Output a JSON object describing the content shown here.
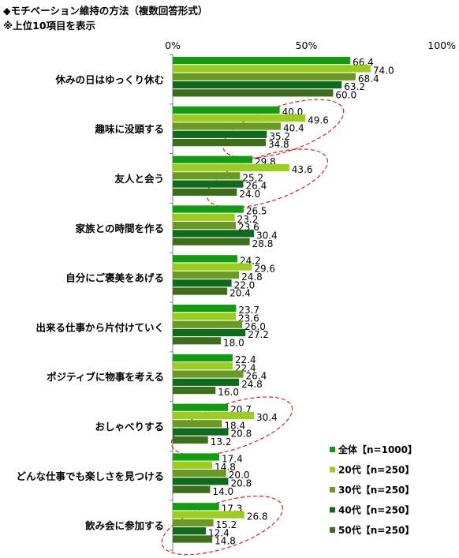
{
  "title": "◆モチベーション維持の方法（複数回答形式）",
  "subtitle": "※上位10項目を表示",
  "chart_data": {
    "type": "bar",
    "orientation": "horizontal",
    "categories": [
      "休みの日はゆっくり休む",
      "趣味に没頭する",
      "友人と会う",
      "家族との時間を作る",
      "自分にご褒美をあげる",
      "出来る仕事から片付けていく",
      "ポジティブに物事を考える",
      "おしゃべりする",
      "どんな仕事でも楽しさを見つける",
      "飲み会に参加する"
    ],
    "series": [
      {
        "name": "全体【n=1000】",
        "color": "#129C12",
        "values": [
          66.4,
          40.0,
          29.8,
          26.5,
          24.2,
          23.7,
          22.4,
          20.7,
          17.4,
          17.3
        ]
      },
      {
        "name": "20代【n=250】",
        "color": "#9ACD1E",
        "values": [
          74.0,
          49.6,
          43.6,
          23.2,
          29.6,
          23.6,
          22.4,
          30.4,
          14.8,
          26.8
        ]
      },
      {
        "name": "30代【n=250】",
        "color": "#6B9A23",
        "values": [
          68.4,
          40.4,
          25.2,
          23.6,
          24.8,
          26.0,
          26.4,
          18.4,
          20.0,
          15.2
        ]
      },
      {
        "name": "40代【n=250】",
        "color": "#0E6B1E",
        "values": [
          63.2,
          35.2,
          26.4,
          30.4,
          22.0,
          27.2,
          24.8,
          20.8,
          20.8,
          12.4
        ]
      },
      {
        "name": "50代【n=250】",
        "color": "#3F6E1B",
        "values": [
          60.0,
          34.8,
          24.0,
          28.8,
          20.4,
          18.0,
          16.0,
          13.2,
          14.0,
          14.8
        ]
      }
    ],
    "value_labels": [
      [
        "66.4",
        "74.0",
        "68.4",
        "63.2",
        "60.0"
      ],
      [
        "40.0",
        "49.6",
        "40.4",
        "35.2",
        "34.8"
      ],
      [
        "29.8",
        "43.6",
        "25.2",
        "26.4",
        "24.0"
      ],
      [
        "26.5",
        "23.2",
        "23.6",
        "30.4",
        "28.8"
      ],
      [
        "24.2",
        "29.6",
        "24.8",
        "22.0",
        "20.4"
      ],
      [
        "23.7",
        "23.6",
        "26.0",
        "27.2",
        "18.0"
      ],
      [
        "22.4",
        "22.4",
        "26.4",
        "24.8",
        "16.0"
      ],
      [
        "20.7",
        "30.4",
        "18.4",
        "20.8",
        "13.2"
      ],
      [
        "17.4",
        "14.8",
        "20.0",
        "20.8",
        "14.0"
      ],
      [
        "17.3",
        "26.8",
        "15.2",
        "12.4",
        "14.8"
      ]
    ],
    "x_ticks": [
      0,
      50,
      100
    ],
    "x_tick_labels": [
      "0%",
      "50%",
      "100%"
    ],
    "xlim": [
      0,
      100
    ],
    "unit": "%",
    "grid": false,
    "legend_position": "bottom-right",
    "highlighted_categories": [
      "趣味に没頭する",
      "友人と会う",
      "おしゃべりする",
      "飲み会に参加する"
    ],
    "highlight_color": "#E0201B"
  }
}
